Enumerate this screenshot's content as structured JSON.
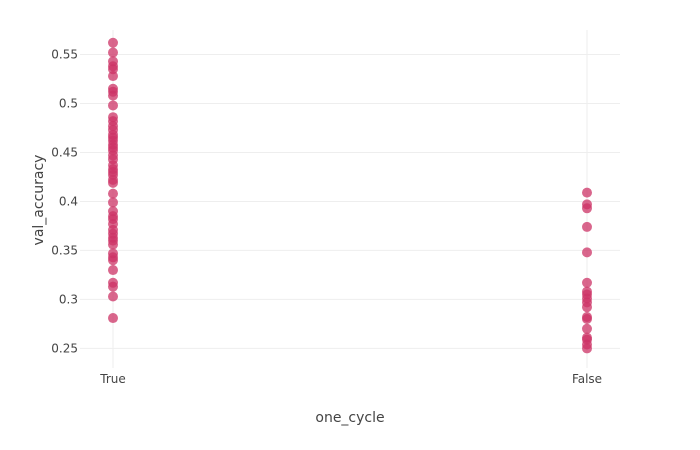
{
  "chart_data": {
    "type": "scatter",
    "xlabel": "one_cycle",
    "ylabel": "val_accuracy",
    "categories": [
      "True",
      "False"
    ],
    "ylim": [
      0.23,
      0.575
    ],
    "y_ticks": [
      0.25,
      0.3,
      0.35,
      0.4,
      0.45,
      0.5,
      0.55
    ],
    "y_tick_labels": [
      "0.25",
      "0.3",
      "0.35",
      "0.4",
      "0.45",
      "0.5",
      "0.55"
    ],
    "grid": true,
    "marker_color": "#cc3366",
    "series": [
      {
        "x": "True",
        "values": [
          0.562,
          0.552,
          0.543,
          0.538,
          0.535,
          0.528,
          0.515,
          0.512,
          0.508,
          0.498,
          0.486,
          0.482,
          0.477,
          0.473,
          0.468,
          0.465,
          0.462,
          0.458,
          0.455,
          0.452,
          0.447,
          0.443,
          0.437,
          0.433,
          0.43,
          0.427,
          0.422,
          0.419,
          0.408,
          0.399,
          0.39,
          0.385,
          0.382,
          0.377,
          0.371,
          0.367,
          0.363,
          0.36,
          0.356,
          0.347,
          0.343,
          0.34,
          0.33,
          0.317,
          0.313,
          0.303,
          0.281
        ]
      },
      {
        "x": "False",
        "values": [
          0.409,
          0.397,
          0.393,
          0.374,
          0.348,
          0.317,
          0.308,
          0.305,
          0.301,
          0.297,
          0.292,
          0.282,
          0.28,
          0.27,
          0.261,
          0.259,
          0.254,
          0.25
        ]
      }
    ]
  }
}
